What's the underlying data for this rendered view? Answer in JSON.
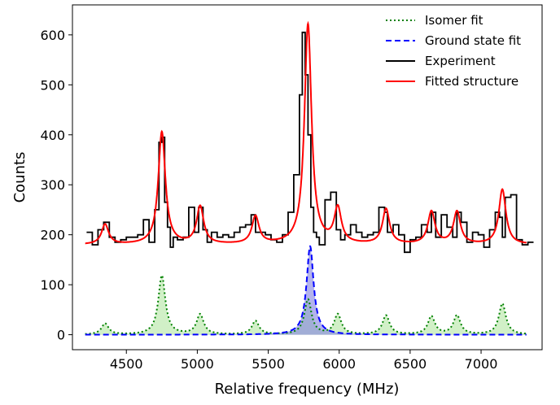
{
  "chart_data": {
    "type": "line",
    "xlabel": "Relative frequency (MHz)",
    "ylabel": "Counts",
    "xlim": [
      4120,
      7430
    ],
    "ylim": [
      -30,
      660
    ],
    "xticks": [
      4500,
      5000,
      5500,
      6000,
      6500,
      7000
    ],
    "yticks": [
      0,
      100,
      200,
      300,
      400,
      500,
      600
    ],
    "grid": false,
    "legend_position": "top-right",
    "legend": [
      {
        "name": "Isomer fit",
        "color": "#008000",
        "style": "dotted"
      },
      {
        "name": "Ground state fit",
        "color": "#0000ff",
        "style": "dashed"
      },
      {
        "name": "Experiment",
        "color": "#000000",
        "style": "solid"
      },
      {
        "name": "Fitted structure",
        "color": "#ff0000",
        "style": "solid"
      }
    ],
    "series": [
      {
        "name": "Experiment",
        "kind": "step",
        "color": "#000000",
        "x": [
          4220,
          4260,
          4300,
          4340,
          4380,
          4420,
          4460,
          4500,
          4540,
          4580,
          4620,
          4660,
          4700,
          4730,
          4750,
          4770,
          4790,
          4810,
          4830,
          4860,
          4900,
          4940,
          4980,
          5010,
          5040,
          5070,
          5100,
          5140,
          5180,
          5220,
          5260,
          5300,
          5340,
          5380,
          5410,
          5440,
          5480,
          5520,
          5560,
          5600,
          5640,
          5680,
          5720,
          5740,
          5760,
          5780,
          5800,
          5820,
          5840,
          5860,
          5900,
          5940,
          5980,
          6010,
          6040,
          6080,
          6120,
          6160,
          6200,
          6240,
          6280,
          6320,
          6340,
          6380,
          6420,
          6460,
          6500,
          6540,
          6580,
          6620,
          6650,
          6680,
          6720,
          6760,
          6800,
          6830,
          6860,
          6900,
          6940,
          6980,
          7020,
          7060,
          7100,
          7130,
          7150,
          7170,
          7210,
          7250,
          7290,
          7330
        ],
        "y": [
          205,
          180,
          210,
          225,
          195,
          185,
          190,
          195,
          195,
          200,
          230,
          185,
          250,
          385,
          395,
          265,
          215,
          175,
          195,
          190,
          195,
          255,
          205,
          255,
          210,
          185,
          205,
          195,
          200,
          195,
          205,
          215,
          220,
          240,
          205,
          205,
          200,
          190,
          185,
          200,
          245,
          320,
          480,
          605,
          520,
          400,
          255,
          205,
          195,
          180,
          270,
          285,
          210,
          190,
          200,
          220,
          205,
          195,
          200,
          205,
          255,
          245,
          205,
          220,
          200,
          165,
          190,
          195,
          220,
          205,
          245,
          195,
          240,
          215,
          195,
          245,
          225,
          185,
          205,
          200,
          175,
          210,
          245,
          235,
          195,
          275,
          280,
          190,
          180,
          185
        ]
      },
      {
        "name": "Fitted structure",
        "kind": "line",
        "color": "#ff0000",
        "baseline": 180,
        "peaks": [
          [
            4350,
            40
          ],
          [
            4750,
            225
          ],
          [
            5020,
            75
          ],
          [
            5410,
            55
          ],
          [
            5780,
            440
          ],
          [
            5990,
            70
          ],
          [
            6330,
            70
          ],
          [
            6650,
            65
          ],
          [
            6830,
            65
          ],
          [
            7150,
            110
          ]
        ]
      },
      {
        "name": "Isomer fit",
        "kind": "line",
        "color": "#008000",
        "fill": "#b3e6a1",
        "baseline": 0,
        "peaks": [
          [
            4350,
            22
          ],
          [
            4750,
            118
          ],
          [
            5020,
            40
          ],
          [
            5410,
            27
          ],
          [
            5780,
            70
          ],
          [
            5990,
            40
          ],
          [
            6330,
            38
          ],
          [
            6650,
            36
          ],
          [
            6830,
            38
          ],
          [
            7150,
            62
          ]
        ]
      },
      {
        "name": "Ground state fit",
        "kind": "line",
        "color": "#0000ff",
        "fill": "#8080e0",
        "baseline": 0,
        "peaks": [
          [
            5795,
            177
          ]
        ]
      }
    ]
  }
}
